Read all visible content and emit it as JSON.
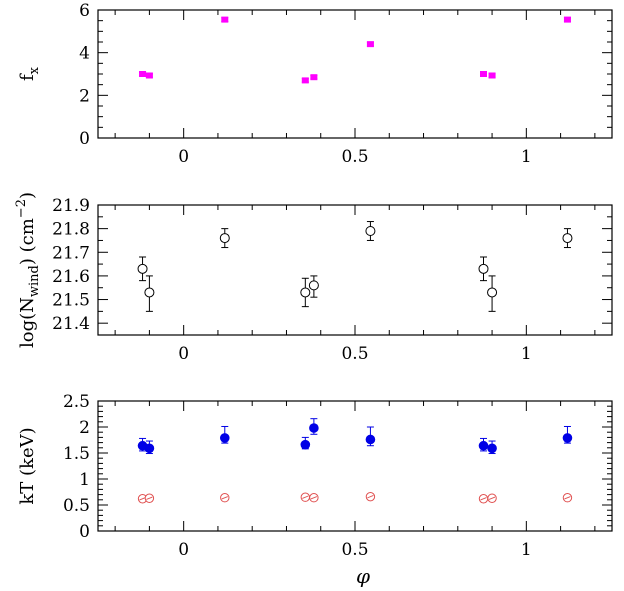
{
  "chart_data": [
    {
      "type": "scatter",
      "ylabel_main": "f",
      "ylabel_sub": "x",
      "xlim": [
        -0.25,
        1.25
      ],
      "ylim": [
        0,
        6
      ],
      "xticks": [
        "0",
        "0.5",
        "1"
      ],
      "yticks": [
        "0",
        "2",
        "4",
        "6"
      ],
      "series": [
        {
          "marker": "filled-square",
          "color": "#ff00ff",
          "x": [
            -0.12,
            -0.1,
            0.12,
            0.355,
            0.38,
            0.545,
            0.875,
            0.9,
            1.12
          ],
          "y": [
            3.0,
            2.93,
            5.55,
            2.7,
            2.85,
            4.4,
            3.0,
            2.93,
            5.55
          ],
          "yerr": [
            0.08,
            0.08,
            0.09,
            0.08,
            0.08,
            0.09,
            0.08,
            0.08,
            0.09
          ]
        }
      ]
    },
    {
      "type": "scatter",
      "ylabel_main": "log(N",
      "ylabel_sub": "wind",
      "ylabel_rest": ")  (cm",
      "ylabel_sup": "−2",
      "ylabel_end": ")",
      "xlim": [
        -0.25,
        1.25
      ],
      "ylim": [
        21.35,
        21.9
      ],
      "xticks": [
        "0",
        "0.5",
        "1"
      ],
      "yticks": [
        "21.4",
        "21.5",
        "21.6",
        "21.7",
        "21.8",
        "21.9"
      ],
      "series": [
        {
          "marker": "open-circle",
          "color": "#000000",
          "x": [
            -0.12,
            -0.1,
            0.12,
            0.355,
            0.38,
            0.545,
            0.875,
            0.9,
            1.12
          ],
          "y": [
            21.63,
            21.53,
            21.76,
            21.53,
            21.56,
            21.79,
            21.63,
            21.53,
            21.76
          ],
          "yerr_up": [
            0.05,
            0.07,
            0.04,
            0.06,
            0.04,
            0.04,
            0.05,
            0.07,
            0.04
          ],
          "yerr_down": [
            0.05,
            0.08,
            0.04,
            0.06,
            0.05,
            0.04,
            0.05,
            0.08,
            0.04
          ]
        }
      ]
    },
    {
      "type": "scatter",
      "ylabel_main": "kT  (keV)",
      "xlabel": "φ",
      "xlim": [
        -0.25,
        1.25
      ],
      "ylim": [
        0,
        2.5
      ],
      "xticks": [
        "0",
        "0.5",
        "1"
      ],
      "yticks": [
        "0",
        "0.5",
        "1",
        "1.5",
        "2",
        "2.5"
      ],
      "series": [
        {
          "marker": "filled-circle",
          "color": "#0000e6",
          "x": [
            -0.12,
            -0.1,
            0.12,
            0.355,
            0.38,
            0.545,
            0.875,
            0.9,
            1.12
          ],
          "y": [
            1.64,
            1.59,
            1.79,
            1.66,
            1.98,
            1.76,
            1.64,
            1.59,
            1.79
          ],
          "yerr_up": [
            0.14,
            0.14,
            0.22,
            0.14,
            0.18,
            0.24,
            0.14,
            0.14,
            0.22
          ],
          "yerr_down": [
            0.1,
            0.1,
            0.1,
            0.08,
            0.12,
            0.12,
            0.1,
            0.1,
            0.1
          ]
        },
        {
          "marker": "crossed-circle",
          "color": "#e05050",
          "x": [
            -0.12,
            -0.1,
            0.12,
            0.355,
            0.38,
            0.545,
            0.875,
            0.9,
            1.12
          ],
          "y": [
            0.62,
            0.63,
            0.64,
            0.65,
            0.64,
            0.66,
            0.62,
            0.63,
            0.64
          ],
          "yerr": [
            0.02,
            0.02,
            0.02,
            0.02,
            0.02,
            0.02,
            0.02,
            0.02,
            0.02
          ]
        }
      ]
    }
  ]
}
